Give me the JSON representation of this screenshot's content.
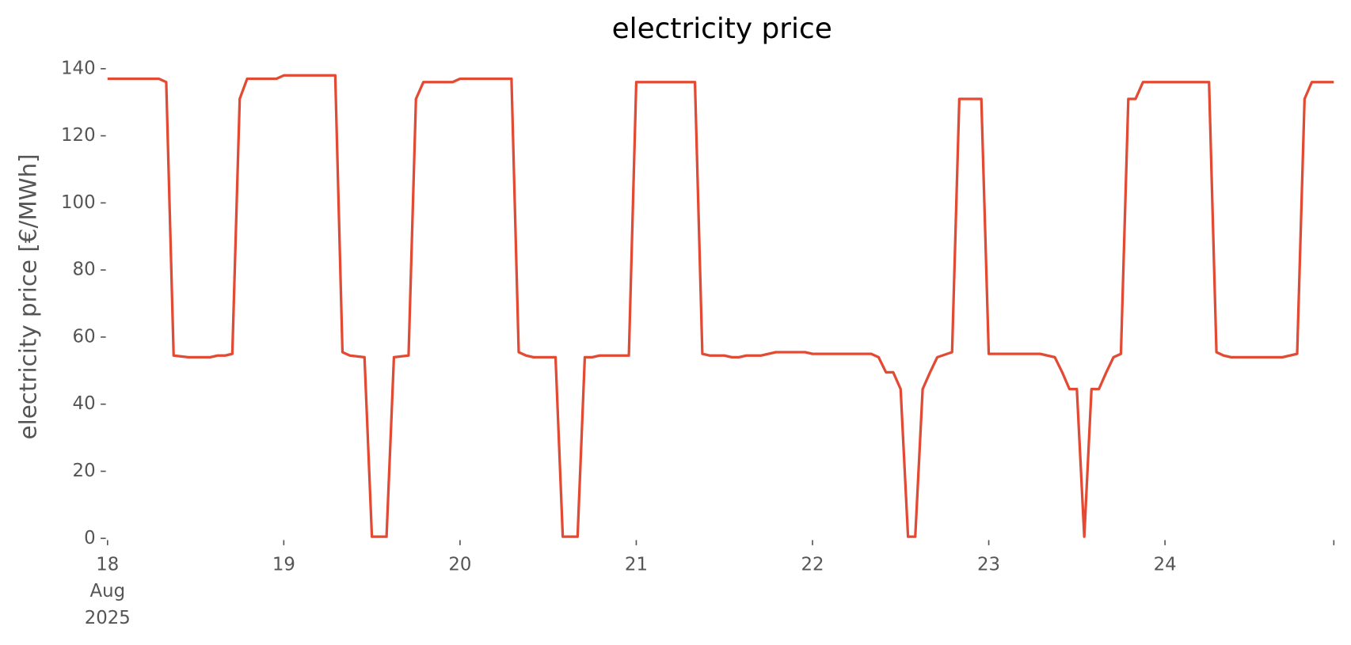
{
  "chart_data": {
    "type": "line",
    "title": "electricity price",
    "y_label": "electricity price [€/MWh]",
    "x": [
      18,
      18.292,
      18.333,
      18.375,
      18.458,
      18.583,
      18.625,
      18.667,
      18.708,
      18.75,
      18.792,
      18.958,
      19,
      19.292,
      19.333,
      19.375,
      19.458,
      19.5,
      19.583,
      19.625,
      19.708,
      19.75,
      19.792,
      19.958,
      20,
      20.292,
      20.333,
      20.375,
      20.417,
      20.542,
      20.583,
      20.667,
      20.708,
      20.75,
      20.792,
      20.958,
      21,
      21.333,
      21.375,
      21.417,
      21.5,
      21.542,
      21.583,
      21.625,
      21.708,
      21.792,
      21.958,
      22,
      22.333,
      22.375,
      22.417,
      22.458,
      22.5,
      22.542,
      22.583,
      22.625,
      22.667,
      22.708,
      22.792,
      22.833,
      22.958,
      23,
      23.292,
      23.333,
      23.375,
      23.417,
      23.458,
      23.5,
      23.542,
      23.583,
      23.625,
      23.667,
      23.708,
      23.75,
      23.792,
      23.833,
      23.875,
      24.25,
      24.292,
      24.333,
      24.375,
      24.667,
      24.708,
      24.75,
      24.792,
      24.833,
      24.958
    ],
    "series": [
      {
        "name": "electricity price",
        "color": "#e24a33",
        "values": [
          137,
          137,
          136,
          54.5,
          54,
          54,
          54.5,
          54.5,
          55,
          131,
          137,
          137,
          138,
          138,
          55.5,
          54.5,
          54,
          0.5,
          0.5,
          54,
          54.5,
          131,
          136,
          136,
          137,
          137,
          55.5,
          54.5,
          54,
          54,
          0.5,
          0.5,
          54,
          54,
          54.5,
          54.5,
          136,
          136,
          55,
          54.5,
          54.5,
          54,
          54,
          54.5,
          54.5,
          55.5,
          55.5,
          55,
          55,
          54,
          49.5,
          49.5,
          44.5,
          0.5,
          0.5,
          44.5,
          49.5,
          54,
          55.5,
          131,
          131,
          55,
          55,
          54.5,
          54,
          49.5,
          44.5,
          44.5,
          0.5,
          44.5,
          44.5,
          49.5,
          54,
          55,
          131,
          131,
          136,
          136,
          55.5,
          54.5,
          54,
          54,
          54.5,
          55,
          131,
          136,
          136
        ]
      }
    ],
    "xlim": [
      18,
      24.958
    ],
    "ylim": [
      0,
      141
    ],
    "xticks": [
      {
        "value": 18,
        "label": [
          "18",
          "Aug",
          "2025"
        ]
      },
      19,
      20,
      21,
      22,
      23,
      24
    ],
    "yticks": [
      0,
      20,
      40,
      60,
      80,
      100,
      120,
      140
    ],
    "grid": false
  }
}
